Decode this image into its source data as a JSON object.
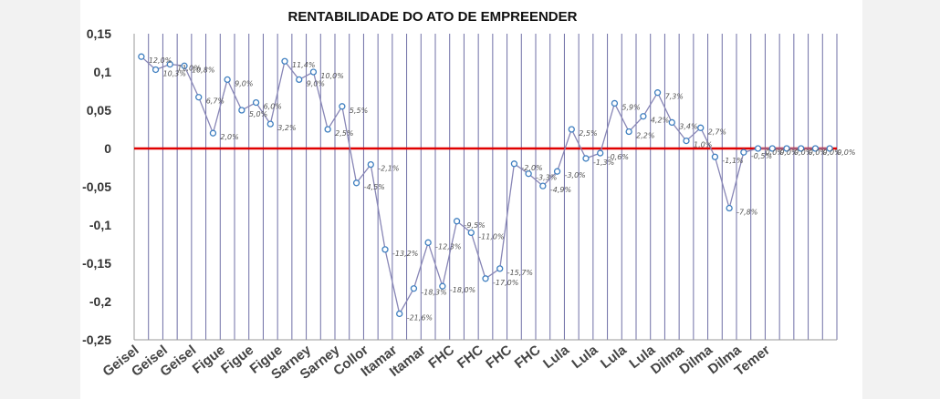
{
  "chart_data": {
    "type": "line",
    "title": "RENTABILIDADE DO ATO DE EMPREENDER",
    "xlabel": "",
    "ylabel": "",
    "ylim": [
      -0.25,
      0.15
    ],
    "yticks": [
      "0,15",
      "0,1",
      "0,05",
      "0",
      "-0,05",
      "-0,1",
      "-0,15",
      "-0,2",
      "-0,25"
    ],
    "grid": "vertical",
    "legend": "none",
    "categories": [
      "Geisel",
      "",
      "Geisel",
      "",
      "Geisel",
      "",
      "Figue",
      "",
      "Figue",
      "",
      "Figue",
      "",
      "Sarney",
      "",
      "Sarney",
      "",
      "Collor",
      "",
      "Itamar",
      "",
      "Itamar",
      "",
      "FHC",
      "",
      "FHC",
      "",
      "FHC",
      "",
      "FHC",
      "",
      "Lula",
      "",
      "Lula",
      "",
      "Lula",
      "",
      "Lula",
      "",
      "Dilma",
      "",
      "Dilma",
      "",
      "Dilma",
      "",
      "Temer",
      "",
      "",
      "",
      ""
    ],
    "series": [
      {
        "values": [
          0.12,
          0.103,
          0.11,
          0.108,
          0.067,
          0.02,
          0.09,
          0.05,
          0.06,
          0.032,
          0.114,
          0.09,
          0.1,
          0.025,
          0.055,
          -0.045,
          -0.021,
          -0.132,
          -0.216,
          -0.183,
          -0.123,
          -0.18,
          -0.095,
          -0.11,
          -0.17,
          -0.157,
          -0.02,
          -0.033,
          -0.049,
          -0.03,
          0.025,
          -0.013,
          -0.006,
          0.059,
          0.022,
          0.042,
          0.073,
          0.034,
          0.01,
          0.027,
          -0.011,
          -0.078,
          -0.005,
          0.0,
          0.0,
          0.0,
          0.0,
          0.0,
          0.0
        ],
        "labels": [
          "12,0%",
          "10,3%",
          "11,0%",
          "10,8%",
          "6,7%",
          "2,0%",
          "9,0%",
          "5,0%",
          "6,0%",
          "3,2%",
          "11,4%",
          "9,0%",
          "10,0%",
          "2,5%",
          "5,5%",
          "-4,5%",
          "-2,1%",
          "-13,2%",
          "-21,6%",
          "-18,3%",
          "-12,3%",
          "-18,0%",
          "-9,5%",
          "-11,0%",
          "-17,0%",
          "-15,7%",
          "-2,0%",
          "-3,3%",
          "-4,9%",
          "-3,0%",
          "2,5%",
          "-1,3%",
          "-0,6%",
          "5,9%",
          "2,2%",
          "4,2%",
          "7,3%",
          "3,4%",
          "1,0%",
          "2,7%",
          "-1,1%",
          "-7,8%",
          "-0,5%",
          "0,0%",
          "0,0%",
          "0,0%",
          "0,0%",
          "0,0%",
          "0,0%"
        ],
        "color": "#8886b6",
        "marker_color": "#3f7fc0"
      }
    ],
    "reference_line": {
      "value": 0,
      "color": "#e00000"
    },
    "grid_color": "#6f6fa6"
  }
}
